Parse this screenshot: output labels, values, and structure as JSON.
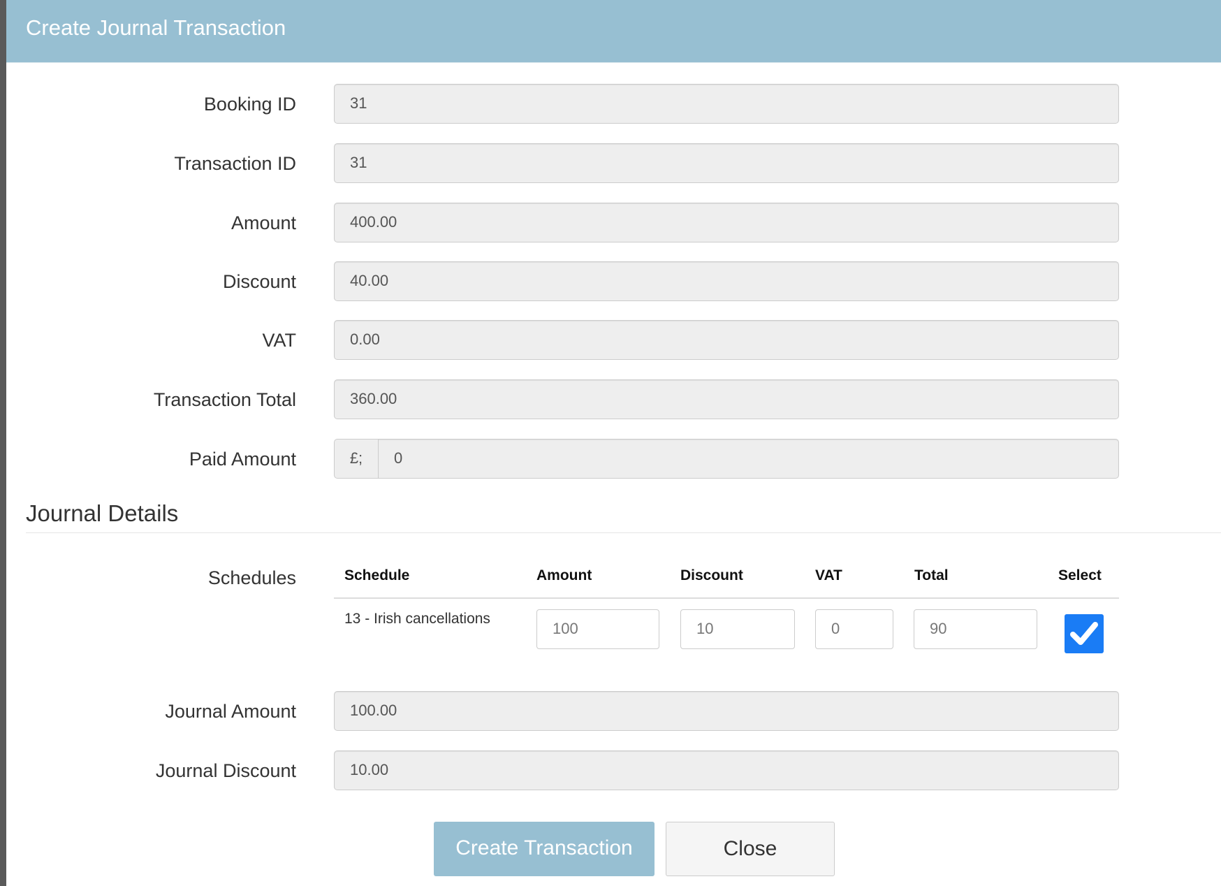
{
  "title": "Create Journal Transaction",
  "fields": [
    {
      "label": "Booking ID",
      "value": "31"
    },
    {
      "label": "Transaction ID",
      "value": "31"
    },
    {
      "label": "Amount",
      "value": "400.00"
    },
    {
      "label": "Discount",
      "value": "40.00"
    },
    {
      "label": "VAT",
      "value": "0.00"
    },
    {
      "label": "Transaction Total",
      "value": "360.00"
    }
  ],
  "paid": {
    "label": "Paid Amount",
    "addon": "£;",
    "value": "0"
  },
  "journal": {
    "heading": "Journal Details",
    "schedules_label": "Schedules",
    "columns": [
      "Schedule",
      "Amount",
      "Discount",
      "VAT",
      "Total",
      "Select"
    ],
    "rows": [
      {
        "schedule": "13 - Irish cancellations",
        "amount": "100",
        "discount": "10",
        "vat": "0",
        "total": "90",
        "selected": true
      }
    ],
    "amount_label": "Journal Amount",
    "amount_value": "100.00",
    "discount_label": "Journal Discount",
    "discount_value": "10.00"
  },
  "buttons": {
    "create": "Create Transaction",
    "close": "Close"
  },
  "colors": {
    "header": "#97bfd2",
    "checkbox": "#1a7cf5"
  }
}
